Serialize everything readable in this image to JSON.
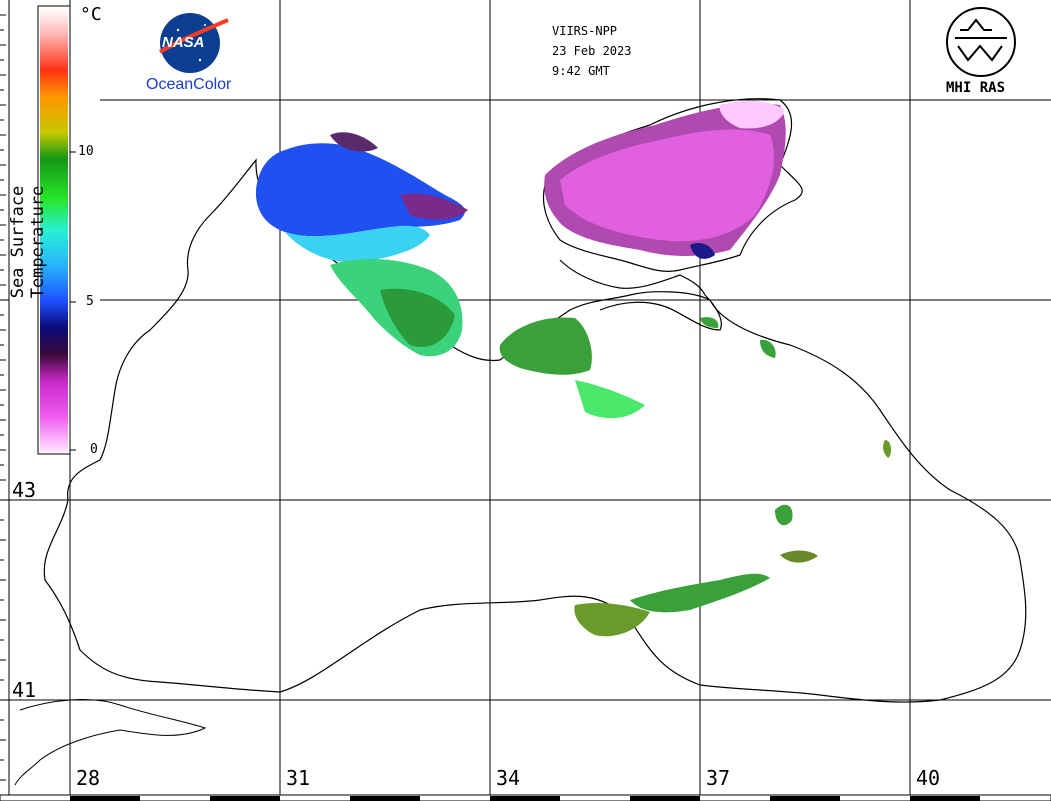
{
  "header": {
    "sensor": "VIIRS-NPP",
    "date": "23 Feb 2023",
    "time": "9:42 GMT"
  },
  "logos": {
    "nasa_text": "NASA",
    "oceancolor_text": "OceanColor",
    "mhi_text": "MHI RAS"
  },
  "colorbar": {
    "title": "Sea Surface Temperature",
    "unit": "°C",
    "ticks": [
      "0",
      "5",
      "10"
    ],
    "range": [
      0,
      15
    ],
    "stops": [
      "#ffe6ff",
      "#f05af0",
      "#c828c8",
      "#3a0a3a",
      "#0a0a78",
      "#1e50ff",
      "#28b4ff",
      "#28f0d2",
      "#28e628",
      "#149614",
      "#c8c800",
      "#ff9600",
      "#ff3214",
      "#ffb4b4",
      "#ffffff"
    ]
  },
  "axes": {
    "lat_labels": [
      "43",
      "41"
    ],
    "lon_labels": [
      "28",
      "31",
      "34",
      "37",
      "40"
    ]
  }
}
